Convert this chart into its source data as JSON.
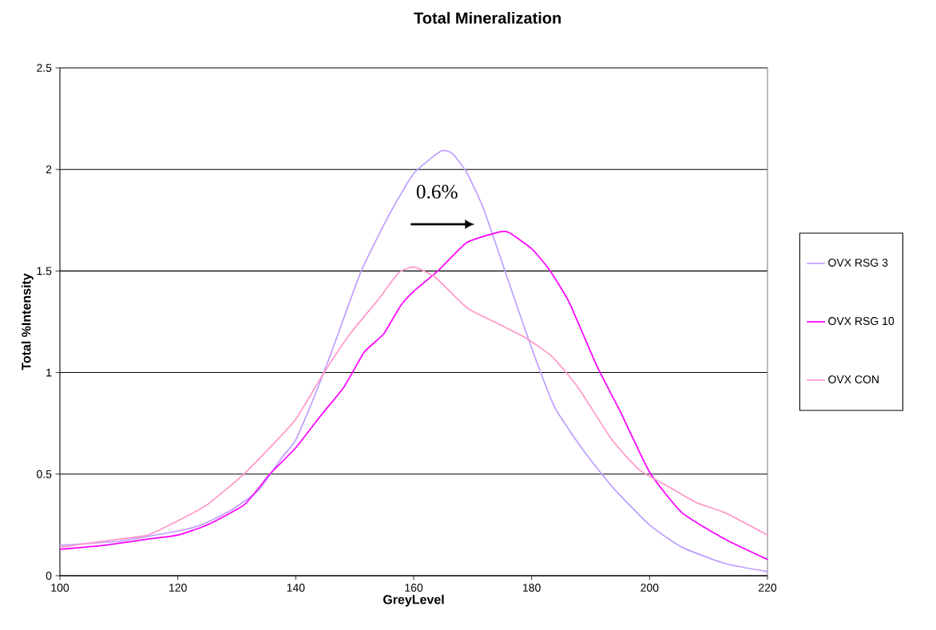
{
  "chart_data": {
    "type": "line",
    "title": "Total Mineralization",
    "xlabel": "GreyLevel",
    "ylabel": "Total %Intensity",
    "xlim": [
      100,
      220
    ],
    "ylim": [
      0,
      2.5
    ],
    "xticks": [
      100,
      120,
      140,
      160,
      180,
      200,
      220
    ],
    "yticks": [
      0,
      0.5,
      1,
      1.5,
      2,
      2.5
    ],
    "grid": "y",
    "legend": "right",
    "annotations": [
      "0.6%"
    ],
    "series": [
      {
        "name": "OVX RSG 3",
        "color": "#bf9fff",
        "x": [
          100,
          110,
          120,
          124,
          128.9,
          133.7,
          137.6,
          140,
          143.4,
          146.3,
          151.1,
          155.9,
          160,
          164.6,
          166.5,
          168.9,
          171.8,
          175.6,
          180,
          183.9,
          188.7,
          193.6,
          200,
          205.5,
          212.8,
          220
        ],
        "values": [
          0.15,
          0.17,
          0.22,
          0.25,
          0.32,
          0.42,
          0.58,
          0.67,
          0.9,
          1.12,
          1.5,
          1.78,
          1.98,
          2.09,
          2.08,
          1.99,
          1.81,
          1.49,
          1.12,
          0.83,
          0.62,
          0.44,
          0.25,
          0.14,
          0.06,
          0.02
        ]
      },
      {
        "name": "OVX RSG 10",
        "color": "#ff00ff",
        "x": [
          100,
          107.6,
          114.9,
          120,
          125,
          131.3,
          135.6,
          140,
          144.3,
          148.2,
          151.6,
          154.9,
          157.8,
          160,
          164.1,
          169,
          174.2,
          176.1,
          180,
          182.9,
          186.3,
          191.1,
          195,
          200,
          205.5,
          212.8,
          220
        ],
        "values": [
          0.13,
          0.15,
          0.18,
          0.2,
          0.25,
          0.35,
          0.5,
          0.63,
          0.79,
          0.93,
          1.1,
          1.19,
          1.33,
          1.4,
          1.5,
          1.64,
          1.69,
          1.69,
          1.61,
          1.51,
          1.35,
          1.03,
          0.81,
          0.51,
          0.31,
          0.18,
          0.08
        ]
      },
      {
        "name": "OVX CON",
        "color": "#ff99cc",
        "x": [
          100,
          110,
          114.9,
          120,
          125,
          130.8,
          135.6,
          140,
          144.8,
          149.2,
          154,
          157.4,
          160,
          163.6,
          167.5,
          169.5,
          174.3,
          179,
          183.4,
          187.8,
          193.6,
          198.3,
          203.1,
          207.9,
          212.8,
          220
        ],
        "values": [
          0.14,
          0.18,
          0.2,
          0.27,
          0.35,
          0.49,
          0.63,
          0.77,
          1.0,
          1.19,
          1.36,
          1.49,
          1.52,
          1.47,
          1.36,
          1.31,
          1.24,
          1.17,
          1.08,
          0.93,
          0.67,
          0.52,
          0.44,
          0.36,
          0.31,
          0.2
        ]
      }
    ]
  }
}
